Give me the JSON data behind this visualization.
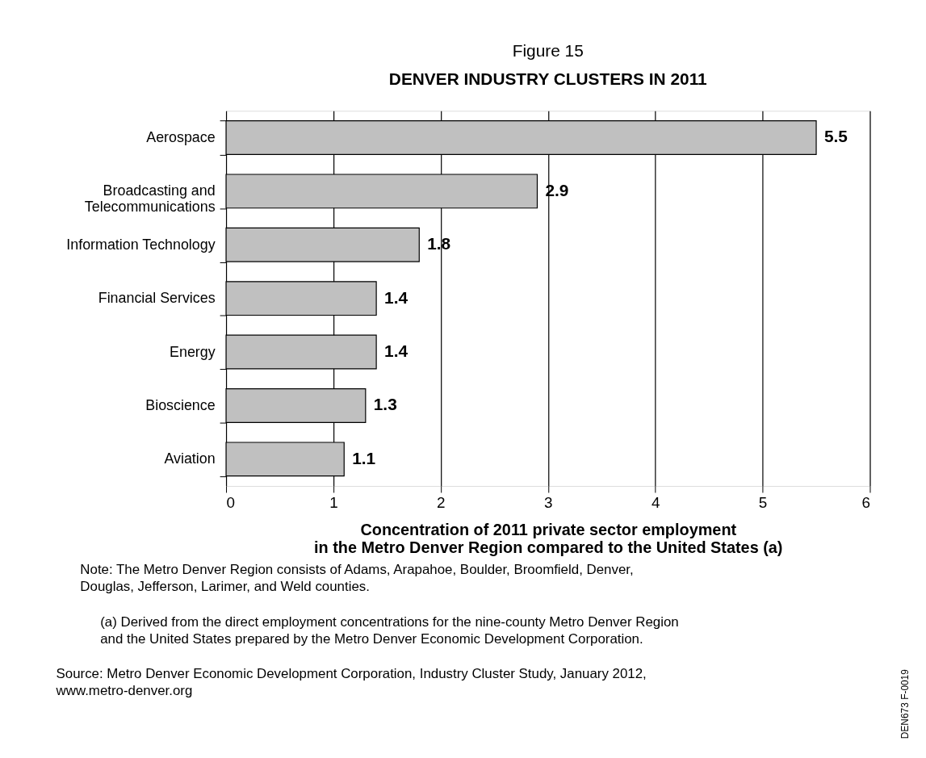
{
  "chart_data": {
    "type": "bar",
    "orientation": "horizontal",
    "title": "Figure 15",
    "subtitle": "DENVER INDUSTRY CLUSTERS IN 2011",
    "categories": [
      "Aerospace",
      "Broadcasting and\nTelecommunications",
      "Information Technology",
      "Financial Services",
      "Energy",
      "Bioscience",
      "Aviation"
    ],
    "values": [
      5.5,
      2.9,
      1.8,
      1.4,
      1.4,
      1.3,
      1.1
    ],
    "color": "#c0c0c0",
    "xlim": [
      0,
      6
    ],
    "xticks": [
      0,
      1,
      2,
      3,
      4,
      5,
      6
    ],
    "grid": "x",
    "data_labels": true,
    "xlabel": "Concentration of 2011 private sector employment\nin the Metro Denver Region compared to the United States (a)",
    "annotations": [
      "Note: The Metro Denver Region consists of Adams, Arapahoe, Boulder, Broomfield, Denver,\n          Douglas, Jefferson, Larimer, and Weld counties.",
      "(a) Derived from the direct employment concentrations for the nine-county Metro Denver Region\n     and the United States prepared by the Metro Denver Economic Development Corporation.",
      "Source: Metro Denver Economic Development Corporation, Industry Cluster Study, January 2012,\n             www.metro-denver.org",
      "DEN673 F-0019"
    ]
  }
}
